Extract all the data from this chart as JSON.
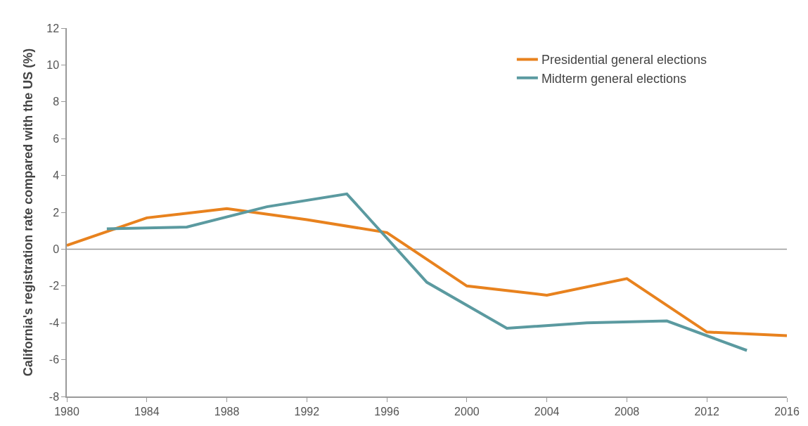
{
  "chart_data": {
    "type": "line",
    "ylabel": "California's registration rate compared with the US (%)",
    "xlim": [
      1980,
      2016
    ],
    "xticks": [
      1980,
      1984,
      1988,
      1992,
      1996,
      2000,
      2004,
      2008,
      2012,
      2016
    ],
    "ylim": [
      -8,
      12
    ],
    "yticks": [
      -8,
      -6,
      -4,
      -2,
      0,
      2,
      4,
      6,
      8,
      10,
      12
    ],
    "grid": false,
    "legend": "top right",
    "marker": "none",
    "line_style": "solid",
    "ref_lines": [
      {
        "axis": "y",
        "value": 0,
        "color": "#999999"
      }
    ],
    "series": [
      {
        "name": "Presidential general elections",
        "color": "#e8821e",
        "x": [
          1980,
          1984,
          1988,
          1992,
          1996,
          2000,
          2004,
          2008,
          2012,
          2016
        ],
        "values": [
          0.2,
          1.7,
          2.2,
          1.6,
          0.9,
          -2.0,
          -2.5,
          -1.6,
          -4.5,
          -4.7
        ]
      },
      {
        "name": "Midterm general elections",
        "color": "#5b9aa0",
        "x": [
          1982,
          1986,
          1990,
          1994,
          1998,
          2002,
          2006,
          2010,
          2014
        ],
        "values": [
          1.1,
          1.2,
          2.3,
          3.0,
          -1.8,
          -4.3,
          -4.0,
          -3.9,
          -5.5
        ]
      }
    ]
  }
}
